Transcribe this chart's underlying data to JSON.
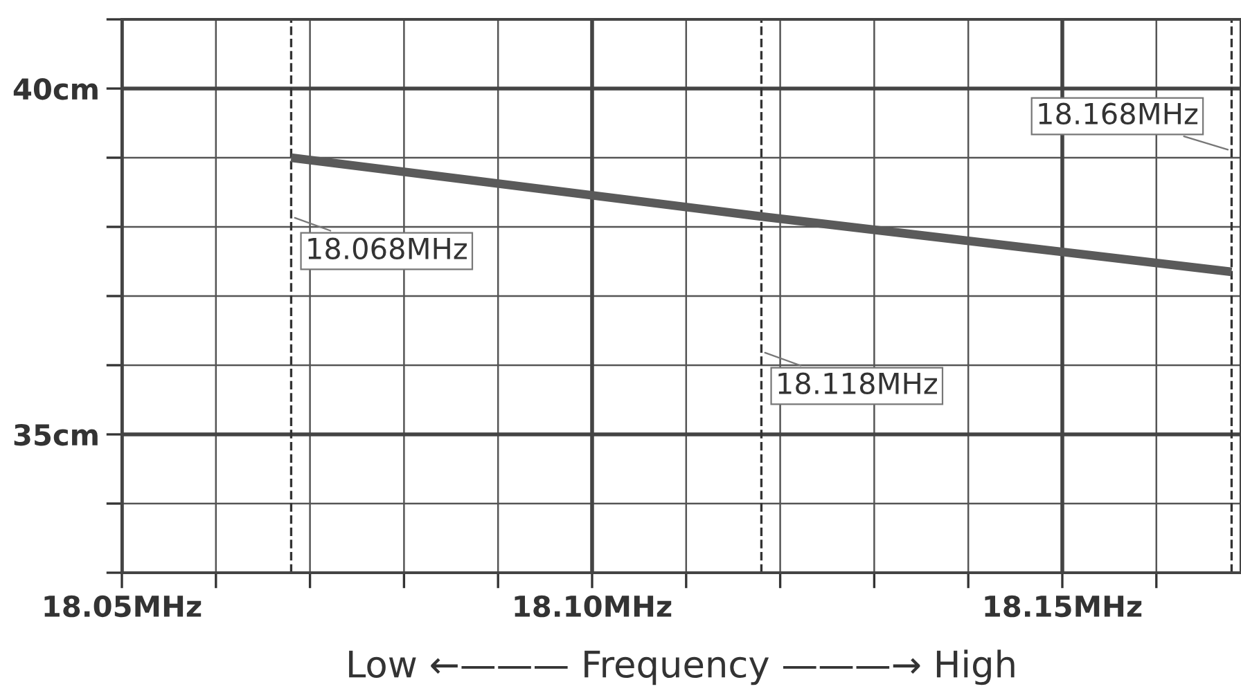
{
  "chart_data": {
    "type": "line",
    "xlabel": "Low ←——— Frequency ———→ High",
    "x": [
      18.068,
      18.118,
      18.168
    ],
    "series": [
      {
        "color": "#5a5a5a",
        "values": [
          39.0,
          38.15,
          37.35
        ]
      }
    ],
    "xlim": [
      18.05,
      18.169
    ],
    "ylim": [
      33,
      41
    ],
    "xticks": [
      {
        "value": 18.05,
        "label": "18.05MHz"
      },
      {
        "value": 18.06,
        "label": null
      },
      {
        "value": 18.07,
        "label": null
      },
      {
        "value": 18.08,
        "label": null
      },
      {
        "value": 18.09,
        "label": null
      },
      {
        "value": 18.1,
        "label": "18.10MHz"
      },
      {
        "value": 18.11,
        "label": null
      },
      {
        "value": 18.12,
        "label": null
      },
      {
        "value": 18.13,
        "label": null
      },
      {
        "value": 18.14,
        "label": null
      },
      {
        "value": 18.15,
        "label": "18.15MHz"
      },
      {
        "value": 18.16,
        "label": null
      }
    ],
    "yticks": [
      {
        "value": 33,
        "label": null
      },
      {
        "value": 34,
        "label": null
      },
      {
        "value": 35,
        "label": "35cm"
      },
      {
        "value": 36,
        "label": null
      },
      {
        "value": 37,
        "label": null
      },
      {
        "value": 38,
        "label": null
      },
      {
        "value": 39,
        "label": null
      },
      {
        "value": 40,
        "label": "40cm"
      },
      {
        "value": 41,
        "label": null
      }
    ],
    "ref_lines": [
      {
        "axis": "x",
        "value": 18.068,
        "label": "18.068MHz",
        "line_style": "dashed",
        "color": "#333333"
      },
      {
        "axis": "x",
        "value": 18.118,
        "label": "18.118MHz",
        "line_style": "dashed",
        "color": "#333333"
      },
      {
        "axis": "x",
        "value": 18.168,
        "label": "18.168MHz",
        "line_style": "dashed",
        "color": "#333333"
      }
    ],
    "grid": true,
    "marker": "none",
    "line_style": "solid"
  }
}
